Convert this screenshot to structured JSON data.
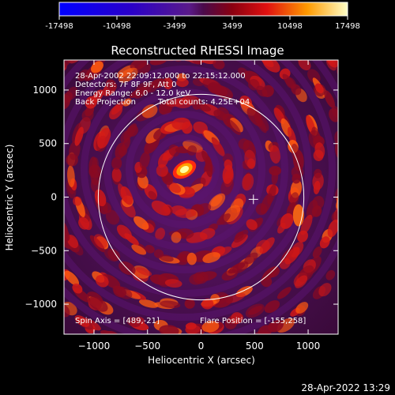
{
  "colorbar": {
    "ticks": [
      "-17498",
      "-10498",
      "-3499",
      "3499",
      "10498",
      "17498"
    ]
  },
  "footer": {
    "timestamp": "28-Apr-2022 13:29"
  },
  "chart_data": {
    "type": "heatmap",
    "title": "Reconstructed RHESSI Image",
    "xlabel": "Heliocentric X (arcsec)",
    "ylabel": "Heliocentric Y (arcsec)",
    "xlim": [
      -1280,
      1280
    ],
    "ylim": [
      -1280,
      1280
    ],
    "xticks": [
      -1000,
      -500,
      0,
      500,
      1000
    ],
    "yticks": [
      -1000,
      -500,
      0,
      500,
      1000
    ],
    "xtick_labels": [
      "−1000",
      "−500",
      "0",
      "500",
      "1000"
    ],
    "ytick_labels": [
      "−1000",
      "−500",
      "0",
      "500",
      "1000"
    ],
    "color_range": [
      -17498,
      17498
    ],
    "solar_disk_radius": 960,
    "spin_axis": [
      489,
      -21
    ],
    "flare_position": [
      -155,
      258
    ],
    "annotations": {
      "time_range": "28-Apr-2002 22:09:12.000 to 22:15:12.000",
      "detectors": "Detectors: 7F 8F 9F, Att 0",
      "energy": "Energy Range: 6.0 - 12.0 keV",
      "method": "Back Projection",
      "counts": "Total counts: 4.25E+04",
      "spin_axis_label": "Spin Axis = [489,-21]",
      "flare_position_label": "Flare Position = [-155,258]"
    }
  }
}
